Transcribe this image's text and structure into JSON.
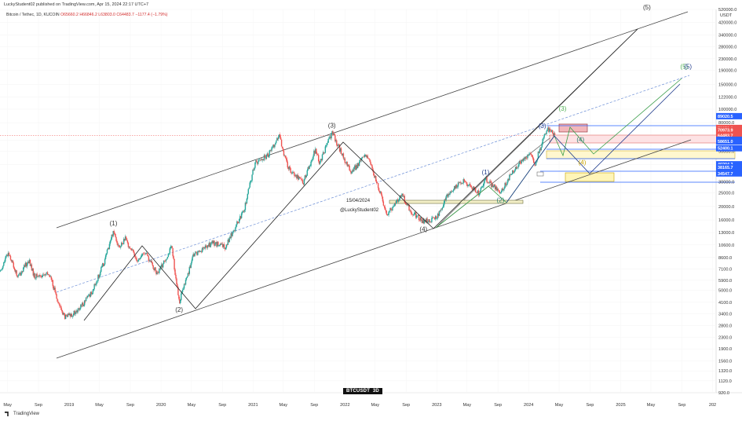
{
  "header": {
    "caption": "LuckyStudent02 published on TradingView.com, Apr 15, 2024 22:17 UTC+7",
    "symbol_line": "Bitcoin / Tethec, 1D, KUCOIN",
    "ohlc": "O65660.2  H66846.2  L63803.0  C64483.7  −1177.4 (−1.79%)",
    "unit": "USDT"
  },
  "badge": {
    "symbol": "BTCUSDT",
    "interval": "3D"
  },
  "footer": {
    "brand": "TradingView"
  },
  "annotations": {
    "date": "15/04/2024",
    "author": "@LuckyStudent02"
  },
  "chart_data": {
    "type": "line",
    "scale": "log",
    "ylim": [
      920,
      520000
    ],
    "xlim": [
      "2018-04-01",
      "2026-01-15"
    ],
    "price_ticks": [
      920,
      1120,
      1320,
      1560,
      1900,
      2300,
      2800,
      3400,
      4100,
      5000,
      5900,
      7100,
      8600,
      10600,
      13000,
      16000,
      20000,
      25000,
      30000,
      40000,
      50000,
      60000,
      80000,
      100000,
      122000,
      150000,
      190000,
      230000,
      280000,
      340000,
      420000,
      520000
    ],
    "price_tick_labels": [
      "920.0",
      "1120.0",
      "1320.0",
      "1560.0",
      "1900.0",
      "2300.0",
      "2800.0",
      "3400.0",
      "4100.0",
      "5000.0",
      "5900.0",
      "7100.0",
      "8600.0",
      "10600.0",
      "13000.0",
      "16000.0",
      "20000.0",
      "25000.0",
      "30000.0",
      "40000.0",
      "50000.0",
      "60000.0",
      "80000.0",
      "100000.0",
      "122000.0",
      "150000.0",
      "190000.0",
      "230000.0",
      "280000.0",
      "340000.0",
      "420000.0",
      "520000.0"
    ],
    "date_ticks": [
      {
        "label": "May",
        "date": "2018-05-01"
      },
      {
        "label": "Sep",
        "date": "2018-09-01"
      },
      {
        "label": "2019",
        "date": "2019-01-01"
      },
      {
        "label": "May",
        "date": "2019-05-01"
      },
      {
        "label": "Sep",
        "date": "2019-09-01"
      },
      {
        "label": "2020",
        "date": "2020-01-01"
      },
      {
        "label": "May",
        "date": "2020-05-01"
      },
      {
        "label": "Sep",
        "date": "2020-09-01"
      },
      {
        "label": "2021",
        "date": "2021-01-01"
      },
      {
        "label": "May",
        "date": "2021-05-01"
      },
      {
        "label": "Sep",
        "date": "2021-09-01"
      },
      {
        "label": "2022",
        "date": "2022-01-01"
      },
      {
        "label": "May",
        "date": "2022-05-01"
      },
      {
        "label": "Sep",
        "date": "2022-09-01"
      },
      {
        "label": "2023",
        "date": "2023-01-01"
      },
      {
        "label": "May",
        "date": "2023-05-01"
      },
      {
        "label": "Sep",
        "date": "2023-09-01"
      },
      {
        "label": "2024",
        "date": "2024-01-01"
      },
      {
        "label": "May",
        "date": "2024-05-01"
      },
      {
        "label": "Sep",
        "date": "2024-09-01"
      },
      {
        "label": "2025",
        "date": "2025-01-01"
      },
      {
        "label": "May",
        "date": "2025-05-01"
      },
      {
        "label": "Sep",
        "date": "2025-09-01"
      },
      {
        "label": "202",
        "date": "2026-01-01"
      }
    ],
    "price_series": [
      [
        "2018-04-01",
        6800
      ],
      [
        "2018-05-05",
        9400
      ],
      [
        "2018-06-10",
        6200
      ],
      [
        "2018-07-25",
        8200
      ],
      [
        "2018-08-15",
        6300
      ],
      [
        "2018-10-15",
        6500
      ],
      [
        "2018-11-25",
        3800
      ],
      [
        "2018-12-15",
        3200
      ],
      [
        "2019-02-01",
        3500
      ],
      [
        "2019-04-05",
        5000
      ],
      [
        "2019-05-20",
        8000
      ],
      [
        "2019-06-26",
        13500
      ],
      [
        "2019-07-20",
        10000
      ],
      [
        "2019-08-10",
        11800
      ],
      [
        "2019-09-30",
        8200
      ],
      [
        "2019-10-28",
        9400
      ],
      [
        "2019-12-18",
        6500
      ],
      [
        "2020-02-12",
        10300
      ],
      [
        "2020-03-13",
        4100
      ],
      [
        "2020-05-10",
        9000
      ],
      [
        "2020-07-25",
        11000
      ],
      [
        "2020-09-10",
        10200
      ],
      [
        "2020-11-25",
        18500
      ],
      [
        "2021-01-08",
        41000
      ],
      [
        "2021-02-25",
        46000
      ],
      [
        "2021-04-14",
        64000
      ],
      [
        "2021-05-20",
        38000
      ],
      [
        "2021-07-20",
        30000
      ],
      [
        "2021-09-05",
        51000
      ],
      [
        "2021-09-22",
        41000
      ],
      [
        "2021-11-10",
        68000
      ],
      [
        "2022-01-24",
        35000
      ],
      [
        "2022-03-29",
        47500
      ],
      [
        "2022-05-12",
        28000
      ],
      [
        "2022-06-18",
        17600
      ],
      [
        "2022-08-14",
        24400
      ],
      [
        "2022-09-20",
        18500
      ],
      [
        "2022-11-09",
        15500
      ],
      [
        "2022-12-30",
        16500
      ],
      [
        "2023-02-15",
        24500
      ],
      [
        "2023-04-14",
        30500
      ],
      [
        "2023-06-15",
        25000
      ],
      [
        "2023-07-14",
        31500
      ],
      [
        "2023-09-11",
        25000
      ],
      [
        "2023-10-25",
        34500
      ],
      [
        "2023-12-08",
        44000
      ],
      [
        "2024-01-11",
        48000
      ],
      [
        "2024-01-23",
        39000
      ],
      [
        "2024-03-14",
        73000
      ],
      [
        "2024-04-15",
        64483.7
      ]
    ],
    "waves": [
      {
        "label": "(1)",
        "date": "2019-06-26",
        "price": 13500,
        "color": "#333333",
        "pos": "above"
      },
      {
        "label": "(2)",
        "date": "2020-03-13",
        "price": 4100,
        "color": "#333333",
        "pos": "below"
      },
      {
        "label": "(3)",
        "date": "2021-11-10",
        "price": 68000,
        "color": "#333333",
        "pos": "above"
      },
      {
        "label": "(4)",
        "date": "2022-11-09",
        "price": 15500,
        "color": "#333333",
        "pos": "below"
      },
      {
        "label": "(5)",
        "date": "2025-04-15",
        "price": 480000,
        "color": "#333333",
        "pos": "above"
      },
      {
        "label": "(1)",
        "date": "2023-07-14",
        "price": 31500,
        "color": "#1f3b8c",
        "pos": "above"
      },
      {
        "label": "(2)",
        "date": "2023-09-11",
        "price": 25000,
        "color": "#1f7a6a",
        "pos": "below"
      },
      {
        "label": "(3)",
        "date": "2024-03-14",
        "price": 73000,
        "color": "#1f3b8c",
        "pos": "left"
      },
      {
        "label": "(3)",
        "date": "2024-05-15",
        "price": 90000,
        "color": "#4caf50",
        "pos": "above"
      },
      {
        "label": "(4)",
        "date": "2024-07-25",
        "price": 54000,
        "color": "#1f7a6a",
        "pos": "above"
      },
      {
        "label": "(4)",
        "date": "2024-08-01",
        "price": 40000,
        "color": "#c9a200",
        "pos": "inside"
      },
      {
        "label": "(5)",
        "date": "2025-09-10",
        "price": 180000,
        "color": "#4caf50",
        "pos": "above"
      },
      {
        "label": "(5)",
        "date": "2025-09-25",
        "price": 180000,
        "color": "#1f3b8c",
        "pos": "above"
      }
    ],
    "price_tags": [
      {
        "value": "89020.5",
        "price": 89020.5,
        "color": "#2962ff"
      },
      {
        "value": "73251.6",
        "price": 73251.6,
        "color": "#ef5350"
      },
      {
        "value": "70973.9",
        "price": 70973.9,
        "color": "#ef5350"
      },
      {
        "value": "64483.7",
        "price": 64483.7,
        "color": "#ef5350"
      },
      {
        "value": "60290.0",
        "price": 60290,
        "color": "#2962ff"
      },
      {
        "value": "58651.0",
        "price": 58651,
        "color": "#2962ff"
      },
      {
        "value": "52400.1",
        "price": 52400.1,
        "color": "#2962ff"
      },
      {
        "value": "40204.3",
        "price": 40204.3,
        "color": "#2962ff"
      },
      {
        "value": "38165.7",
        "price": 38165.7,
        "color": "#2962ff"
      },
      {
        "value": "34547.7",
        "price": 34547.7,
        "color": "#2962ff"
      }
    ]
  }
}
